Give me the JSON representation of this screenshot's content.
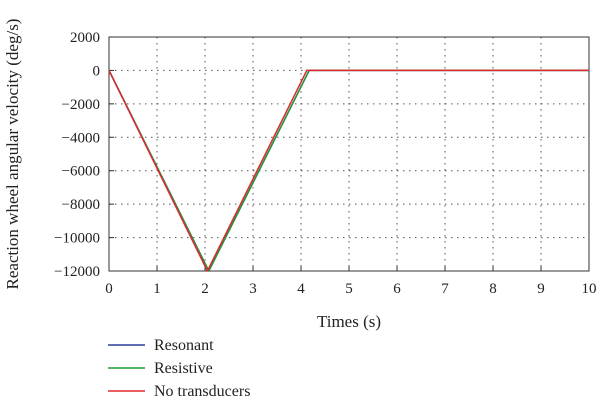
{
  "chart_data": {
    "type": "line",
    "title": "",
    "xlabel": "Times (s)",
    "ylabel": "Reaction wheel angular velocity (deg/s)",
    "xlim": [
      0,
      10
    ],
    "ylim": [
      -12000,
      2000
    ],
    "xticks": [
      0,
      1,
      2,
      3,
      4,
      5,
      6,
      7,
      8,
      9,
      10
    ],
    "yticks": [
      2000,
      0,
      -2000,
      -4000,
      -6000,
      -8000,
      -10000,
      -12000
    ],
    "xtick_labels": [
      "0",
      "1",
      "2",
      "3",
      "4",
      "5",
      "6",
      "7",
      "8",
      "9",
      "10"
    ],
    "ytick_labels": [
      "2000",
      "0",
      "−2000",
      "−4000",
      "−6000",
      "−8000",
      "−10000",
      "−12000"
    ],
    "grid": true,
    "legend_position": "below",
    "series": [
      {
        "name": "Resonant",
        "color": "#2a3f9d",
        "x": [
          0,
          2.08,
          4.17,
          10
        ],
        "y": [
          0,
          -12000,
          0,
          0
        ]
      },
      {
        "name": "Resistive",
        "color": "#1f9a3a",
        "x": [
          0,
          2.08,
          4.17,
          10
        ],
        "y": [
          0,
          -12000,
          0,
          0
        ]
      },
      {
        "name": "No transducers",
        "color": "#e0282e",
        "x": [
          0,
          2.05,
          4.12,
          10
        ],
        "y": [
          0,
          -12000,
          0,
          0
        ]
      }
    ]
  }
}
